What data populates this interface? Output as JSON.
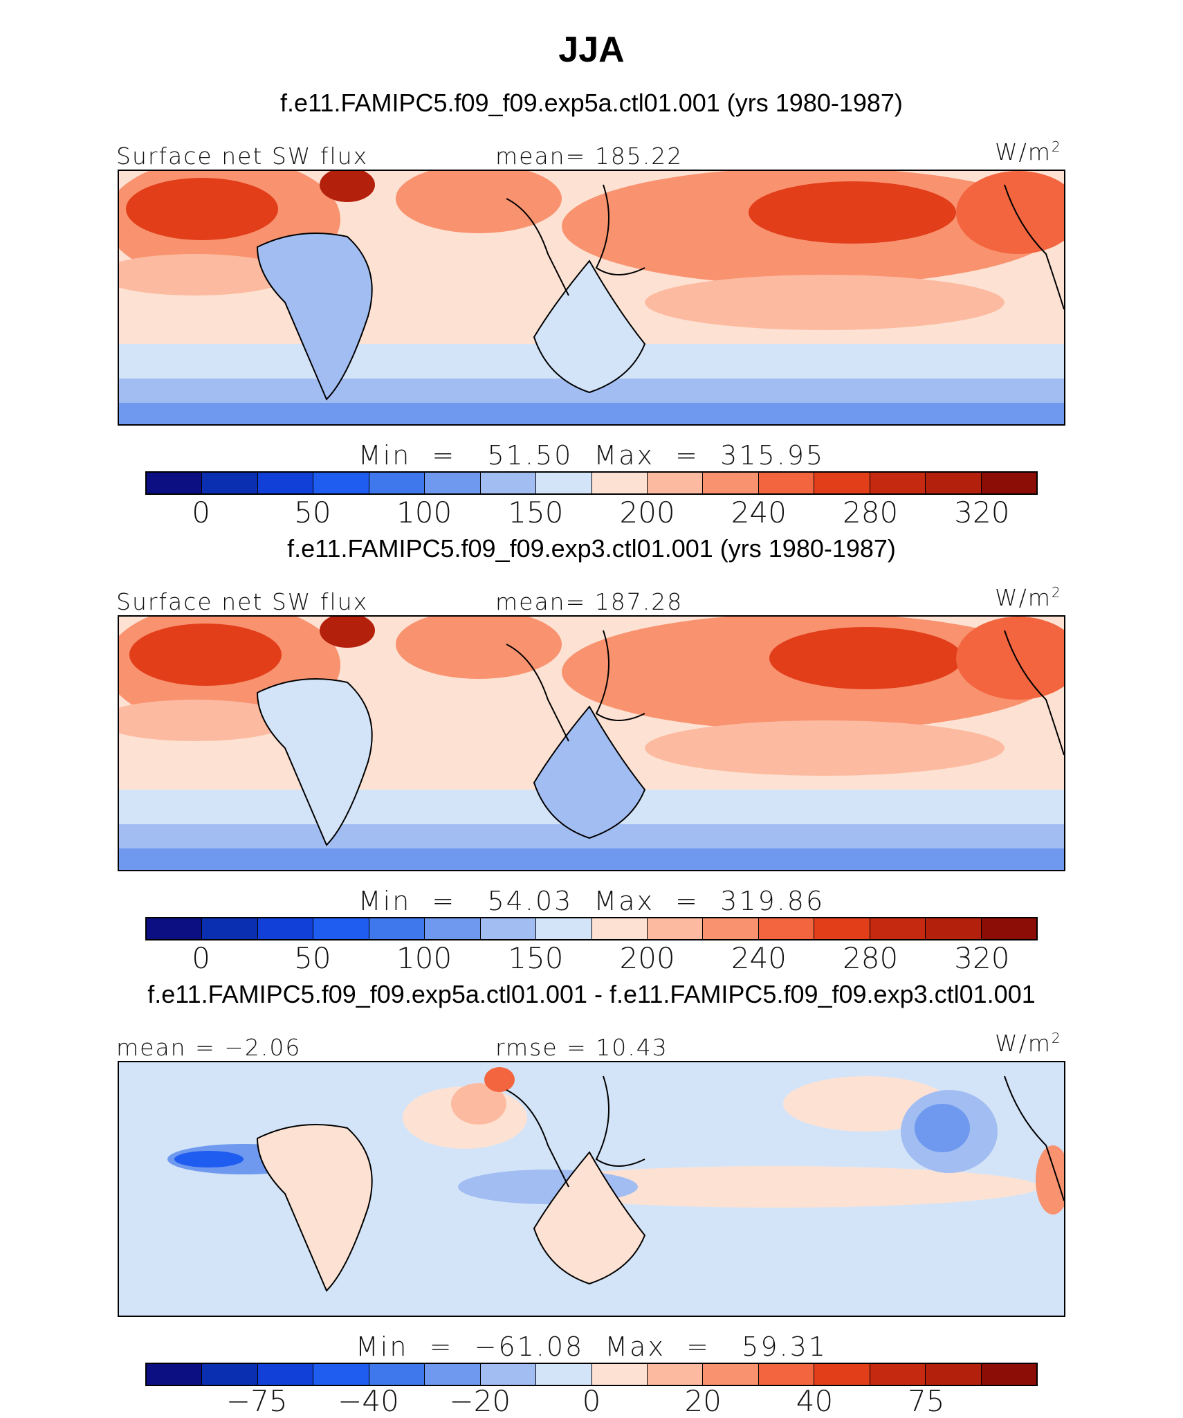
{
  "title": "JJA",
  "units": "W/m",
  "units_sup": "2",
  "palette": [
    "#0b0f82",
    "#0a2fb0",
    "#1040d8",
    "#1f5cf0",
    "#3f77ec",
    "#6e99ee",
    "#a2bdf2",
    "#d3e4f8",
    "#fde2d3",
    "#fcbba1",
    "#f9926f",
    "#f2653f",
    "#e23e1a",
    "#c52a11",
    "#b3200c",
    "#8b0d05"
  ],
  "panels": [
    {
      "title": "f.e11.FAMIPC5.f09_f09.exp5a.ctl01.001 (yrs 1980-1987)",
      "left_label": "Surface net SW flux",
      "center_label": "mean=  185.22",
      "minmax": "Min  =   51.50  Max  =  315.95",
      "ticks": [
        "0",
        "50",
        "100",
        "150",
        "200",
        "240",
        "280",
        "320"
      ]
    },
    {
      "title": "f.e11.FAMIPC5.f09_f09.exp3.ctl01.001 (yrs 1980-1987)",
      "left_label": "Surface net SW flux",
      "center_label": "mean=  187.28",
      "minmax": "Min  =   54.03  Max  =  319.86",
      "ticks": [
        "0",
        "50",
        "100",
        "150",
        "200",
        "240",
        "280",
        "320"
      ]
    },
    {
      "title": "f.e11.FAMIPC5.f09_f09.exp5a.ctl01.001 - f.e11.FAMIPC5.f09_f09.exp3.ctl01.001",
      "left_label": "mean =   −2.06",
      "center_label": "rmse =    10.43",
      "minmax": "Min  =  −61.08  Max  =   59.31",
      "ticks": [
        "−75",
        "−40",
        "−20",
        "0",
        "20",
        "40",
        "75"
      ]
    }
  ]
}
